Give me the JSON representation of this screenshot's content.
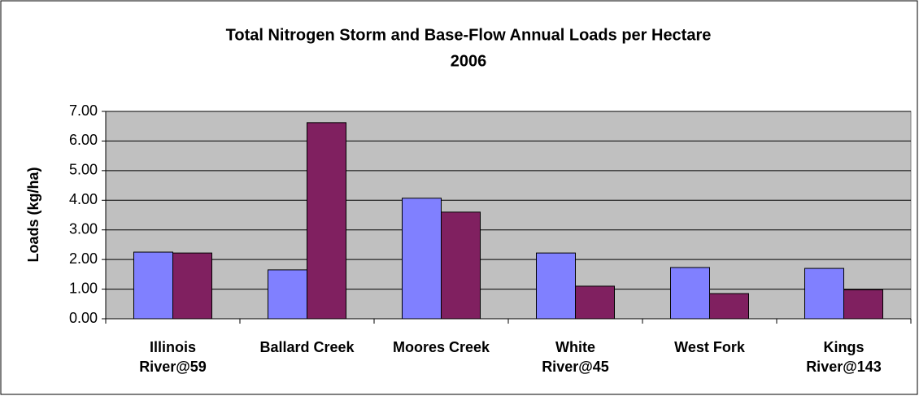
{
  "chart_data": {
    "type": "bar",
    "title": "Total Nitrogen Storm and Base-Flow Annual Loads per Hectare",
    "subtitle": "2006",
    "y_label": "Loads (kg/ha)",
    "categories": [
      "Illinois\nRiver@59",
      "Ballard Creek",
      "Moores Creek",
      "White\nRiver@45",
      "West Fork",
      "Kings\nRiver@143"
    ],
    "series": [
      {
        "color": "#8080ff",
        "values": [
          2.25,
          1.65,
          4.07,
          2.22,
          1.73,
          1.7
        ]
      },
      {
        "color": "#802060",
        "values": [
          2.22,
          6.62,
          3.6,
          1.1,
          0.85,
          0.98
        ]
      }
    ],
    "ylim": [
      0,
      7
    ],
    "yticks": [
      {
        "value": 0,
        "label": "0.00"
      },
      {
        "value": 1,
        "label": "1.00"
      },
      {
        "value": 2,
        "label": "2.00"
      },
      {
        "value": 3,
        "label": "3.00"
      },
      {
        "value": 4,
        "label": "4.00"
      },
      {
        "value": 5,
        "label": "5.00"
      },
      {
        "value": 6,
        "label": "6.00"
      },
      {
        "value": 7,
        "label": "7.00"
      }
    ],
    "grid": true,
    "plot_color": "#c0c0c0"
  }
}
